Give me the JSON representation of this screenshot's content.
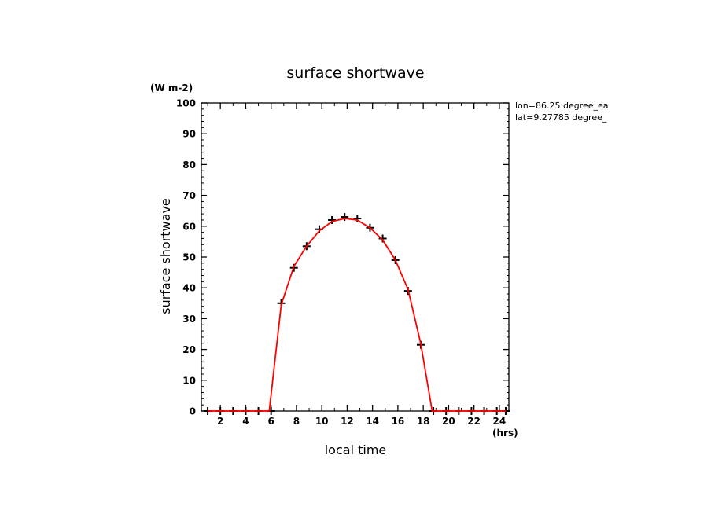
{
  "chart_data": {
    "type": "line",
    "title": "surface shortwave",
    "ylabel": "surface shortwave",
    "yunits": "(W m-2)",
    "xlabel": "local time",
    "xunits": "(hrs)",
    "info": [
      "lon=86.25 degree_ea",
      "lat=9.27785 degree_"
    ],
    "xlim": [
      0.5,
      24.75
    ],
    "ylim": [
      0,
      100
    ],
    "xticks": [
      2,
      4,
      6,
      8,
      10,
      12,
      14,
      16,
      18,
      20,
      22,
      24
    ],
    "yticks": [
      0,
      10,
      20,
      30,
      40,
      50,
      60,
      70,
      80,
      90,
      100
    ],
    "grid": false,
    "colors": {
      "curve": "#ff0000",
      "markers": "#000000",
      "axes": "#000000"
    },
    "series": [
      {
        "marker": "plus",
        "x": [
          1,
          2,
          3,
          4,
          5,
          6,
          6.8,
          7.8,
          8.8,
          9.8,
          10.8,
          11.8,
          12.8,
          13.8,
          14.8,
          15.8,
          16.8,
          17.8,
          18.8,
          19.8,
          20.8,
          21.8,
          22.8,
          23.8,
          24.5
        ],
        "y": [
          0,
          0,
          0,
          0,
          0,
          0,
          35,
          46.5,
          53.5,
          59,
          62,
          63,
          62.5,
          59.5,
          56,
          49,
          39,
          21.5,
          0,
          0,
          0,
          0,
          0,
          0,
          0
        ]
      },
      {
        "marker": "none",
        "x": [
          1,
          2,
          3,
          4,
          5,
          5.85,
          6.8,
          7.8,
          8.8,
          9.8,
          10.8,
          11.8,
          12.8,
          13.8,
          14.8,
          15.8,
          16.8,
          17.8,
          18.7,
          19.8,
          20.8,
          21.8,
          22.8,
          23.8,
          24.5
        ],
        "y": [
          0,
          0,
          0,
          0,
          0,
          0,
          34.5,
          47,
          53.5,
          58.5,
          61.5,
          62.5,
          62,
          59.5,
          55.5,
          49,
          39.5,
          22,
          0,
          0,
          0,
          0,
          0,
          0,
          0
        ]
      }
    ]
  }
}
